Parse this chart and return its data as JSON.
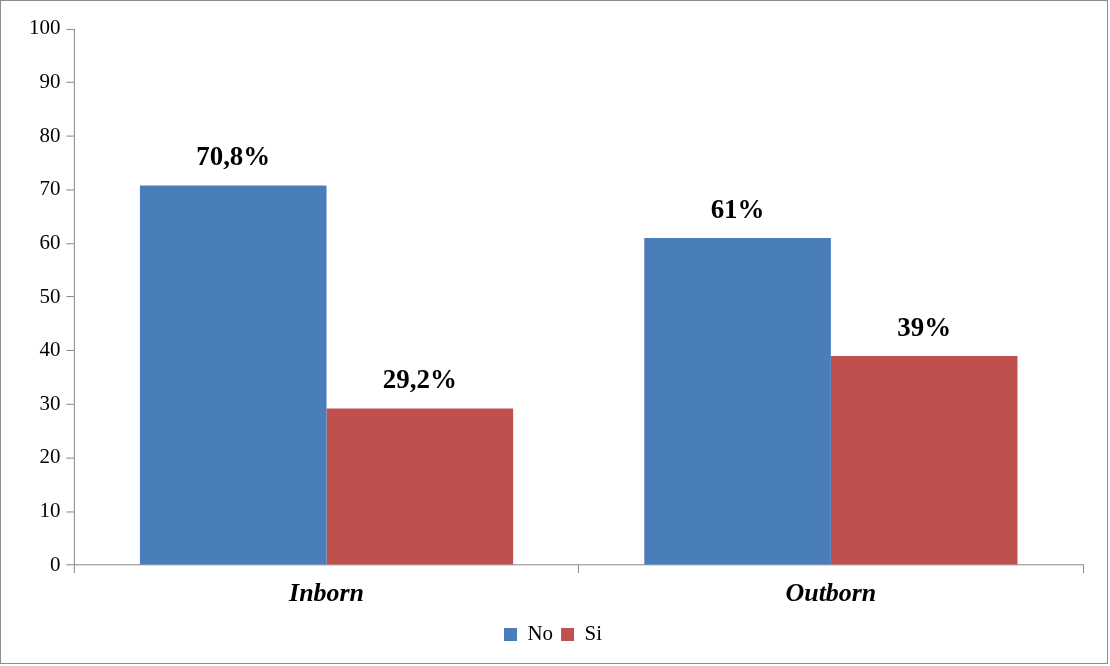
{
  "chart_data": {
    "type": "bar",
    "categories": [
      "Inborn",
      "Outborn"
    ],
    "series": [
      {
        "name": "No",
        "color": "#4a7ebb",
        "values": [
          70.8,
          61
        ],
        "value_labels": [
          "70,8%",
          "61%"
        ]
      },
      {
        "name": "Si",
        "color": "#c0504d",
        "values": [
          29.2,
          39
        ],
        "value_labels": [
          "29,2%",
          "39%"
        ]
      }
    ],
    "ylim": [
      0,
      100
    ],
    "yticks": [
      0,
      10,
      20,
      30,
      40,
      50,
      60,
      70,
      80,
      90,
      100
    ],
    "grid": false,
    "legend": "bottom"
  }
}
